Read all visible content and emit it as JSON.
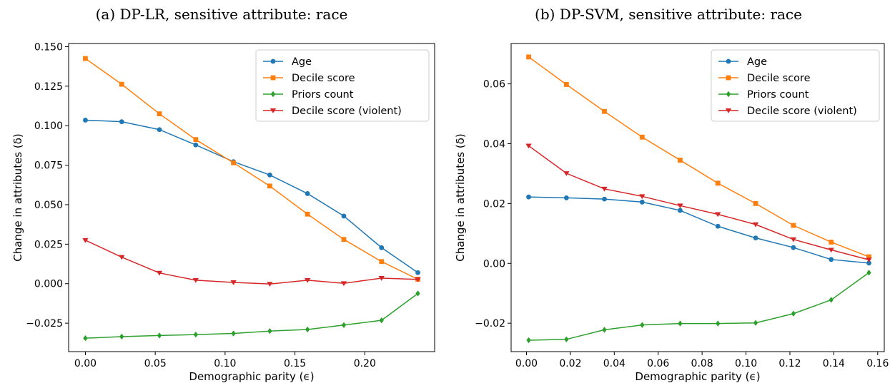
{
  "chart_data": [
    {
      "type": "line",
      "title": "(a) DP-LR, sensitive attribute: race",
      "xlabel": "Demographic parity (ϵ)",
      "ylabel": "Change in attributes (δ)",
      "xlim": [
        -0.012,
        0.25
      ],
      "ylim": [
        -0.043,
        0.152
      ],
      "xticks": [
        0.0,
        0.05,
        0.1,
        0.15,
        0.2
      ],
      "xtick_labels": [
        "0.00",
        "0.05",
        "0.10",
        "0.15",
        "0.20"
      ],
      "yticks": [
        -0.025,
        0.0,
        0.025,
        0.05,
        0.075,
        0.1,
        0.125,
        0.15
      ],
      "ytick_labels": [
        "−0.025",
        "0.000",
        "0.025",
        "0.050",
        "0.075",
        "0.100",
        "0.125",
        "0.150"
      ],
      "legend_position": "top-right",
      "x": [
        0.0,
        0.026,
        0.053,
        0.079,
        0.106,
        0.132,
        0.159,
        0.185,
        0.212,
        0.238
      ],
      "series": [
        {
          "name": "Age",
          "color": "#1f77b4",
          "marker": "circle",
          "values": [
            0.1035,
            0.1025,
            0.0975,
            0.0878,
            0.0772,
            0.0688,
            0.057,
            0.0428,
            0.0228,
            0.007
          ]
        },
        {
          "name": "Decile score",
          "color": "#ff7f0e",
          "marker": "square",
          "values": [
            0.1425,
            0.1262,
            0.1075,
            0.0912,
            0.0765,
            0.0618,
            0.044,
            0.028,
            0.014,
            0.0028
          ]
        },
        {
          "name": "Priors count",
          "color": "#2ca02c",
          "marker": "diamond",
          "values": [
            -0.0345,
            -0.0335,
            -0.0328,
            -0.0322,
            -0.0315,
            -0.03,
            -0.029,
            -0.0262,
            -0.0232,
            -0.0062
          ]
        },
        {
          "name": "Decile score (violent)",
          "color": "#d62728",
          "marker": "triangle-down",
          "values": [
            0.0275,
            0.0168,
            0.0068,
            0.0022,
            0.0008,
            -0.0002,
            0.0022,
            0.0002,
            0.0035,
            0.0027
          ]
        }
      ]
    },
    {
      "type": "line",
      "title": "(b) DP-SVM, sensitive attribute: race",
      "xlabel": "Demographic parity (ϵ)",
      "ylabel": "Change in attributes (δ)",
      "xlim": [
        -0.007,
        0.163
      ],
      "ylim": [
        -0.0295,
        0.0735
      ],
      "xticks": [
        0.0,
        0.02,
        0.04,
        0.06,
        0.08,
        0.1,
        0.12,
        0.14,
        0.16
      ],
      "xtick_labels": [
        "0.00",
        "0.02",
        "0.04",
        "0.06",
        "0.08",
        "0.10",
        "0.12",
        "0.14",
        "0.16"
      ],
      "yticks": [
        -0.02,
        0.0,
        0.02,
        0.04,
        0.06
      ],
      "ytick_labels": [
        "−0.02",
        "0.00",
        "0.02",
        "0.04",
        "0.06"
      ],
      "legend_position": "top-right",
      "x": [
        0.001,
        0.0182,
        0.0355,
        0.0527,
        0.07,
        0.0872,
        0.1044,
        0.1216,
        0.1388,
        0.156
      ],
      "series": [
        {
          "name": "Age",
          "color": "#1f77b4",
          "marker": "circle",
          "values": [
            0.0222,
            0.0219,
            0.0215,
            0.0205,
            0.0177,
            0.0124,
            0.0085,
            0.0053,
            0.0013,
            0.0001
          ]
        },
        {
          "name": "Decile score",
          "color": "#ff7f0e",
          "marker": "square",
          "values": [
            0.069,
            0.0598,
            0.0508,
            0.0422,
            0.0345,
            0.0268,
            0.02,
            0.0127,
            0.0071,
            0.0022
          ]
        },
        {
          "name": "Priors count",
          "color": "#2ca02c",
          "marker": "diamond",
          "values": [
            -0.0257,
            -0.0254,
            -0.0222,
            -0.0206,
            -0.0201,
            -0.0201,
            -0.0199,
            -0.0168,
            -0.0122,
            -0.0031
          ]
        },
        {
          "name": "Decile score (violent)",
          "color": "#d62728",
          "marker": "triangle-down",
          "values": [
            0.0393,
            0.0301,
            0.0249,
            0.0224,
            0.0193,
            0.0164,
            0.013,
            0.008,
            0.0045,
            0.0012
          ]
        }
      ]
    }
  ]
}
